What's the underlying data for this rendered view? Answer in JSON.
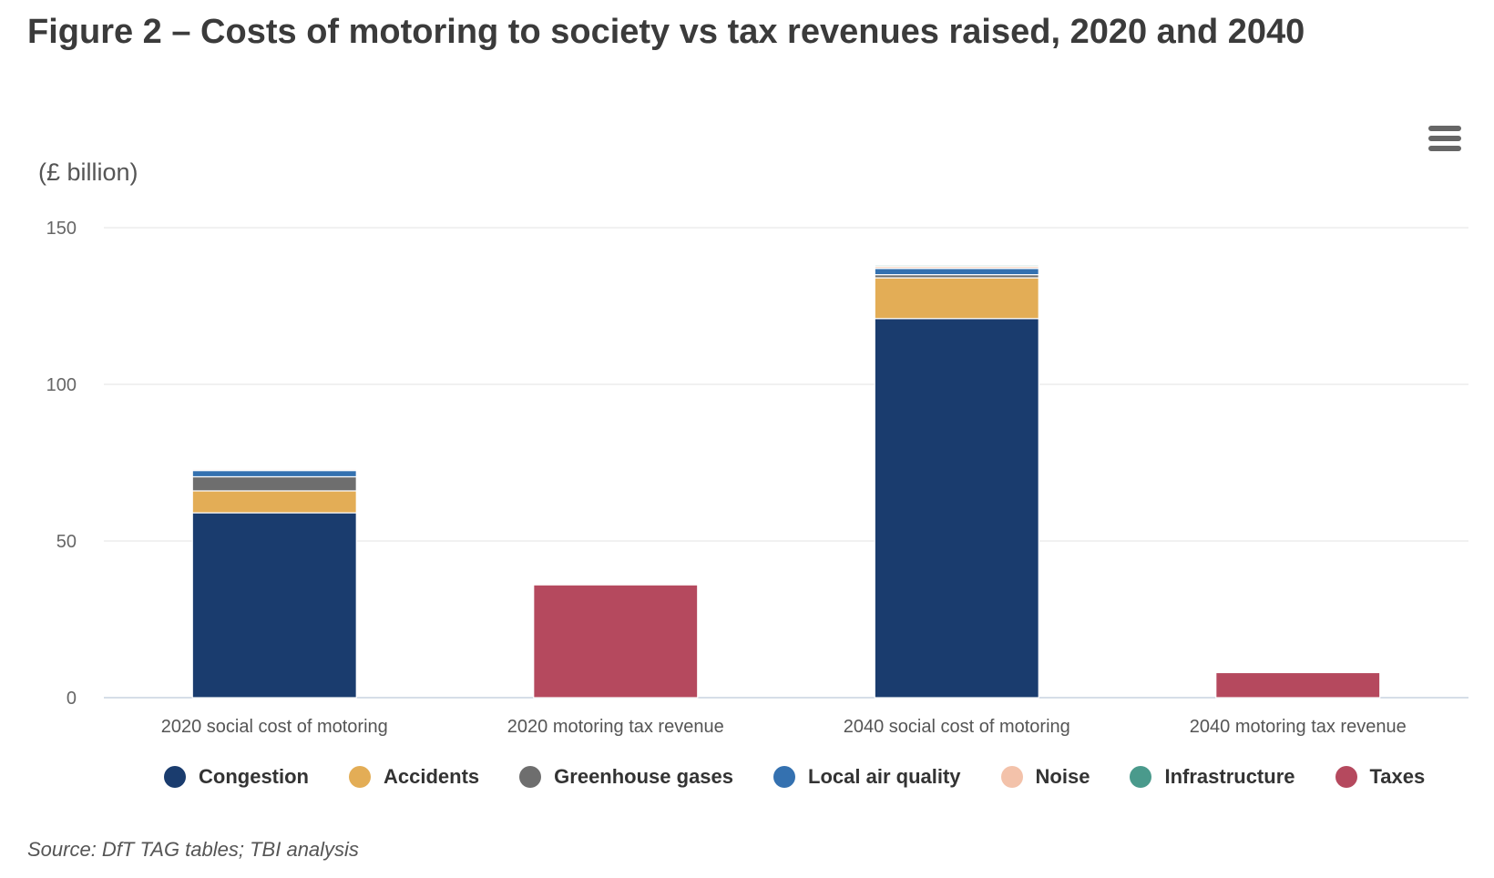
{
  "header": {
    "title": "Figure 2 – Costs of motoring to society vs tax revenues raised, 2020 and 2040",
    "menu_icon": "hamburger-menu-icon"
  },
  "footer": {
    "source": "Source: DfT TAG tables; TBI analysis"
  },
  "chart_data": {
    "type": "bar",
    "stacked": true,
    "title": "Figure 2 – Costs of motoring to society vs tax revenues raised, 2020 and 2040",
    "ylabel": "(£ billion)",
    "ylim": [
      0,
      150
    ],
    "yticks": [
      0,
      50,
      100,
      150
    ],
    "grid": true,
    "legend_position": "bottom",
    "categories": [
      "2020 social cost of motoring",
      "2020 motoring tax revenue",
      "2040 social cost of motoring",
      "2040 motoring tax revenue"
    ],
    "series": [
      {
        "name": "Congestion",
        "color": "#1a3c6e",
        "values": [
          59,
          0,
          121,
          0
        ]
      },
      {
        "name": "Accidents",
        "color": "#e3ad56",
        "values": [
          7,
          0,
          13,
          0
        ]
      },
      {
        "name": "Greenhouse gases",
        "color": "#6e6e6e",
        "values": [
          4.5,
          0,
          1,
          0
        ]
      },
      {
        "name": "Local air quality",
        "color": "#3471b0",
        "values": [
          2,
          0,
          2,
          0
        ]
      },
      {
        "name": "Noise",
        "color": "#f3c2aa",
        "values": [
          0.4,
          0,
          0.6,
          0
        ]
      },
      {
        "name": "Infrastructure",
        "color": "#4a9a8c",
        "values": [
          0.2,
          0,
          0.4,
          0
        ]
      },
      {
        "name": "Taxes",
        "color": "#b5495e",
        "values": [
          0,
          36,
          0,
          8
        ]
      }
    ]
  }
}
